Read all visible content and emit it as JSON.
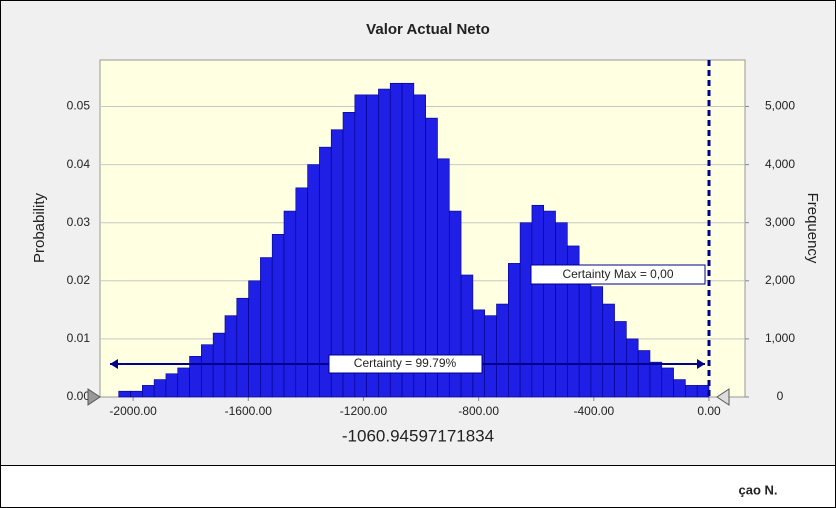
{
  "chart_data": {
    "type": "histogram",
    "title": "Valor Actual Neto",
    "y_label": "Probability",
    "y2_label": "Frequency",
    "x_label": "-1060.94597171834",
    "annotations": [
      "Certainty = 99.79%",
      "Certainty Max = 0,00"
    ],
    "footer": "çao N.",
    "color": "#1f1fe6",
    "edge_color": "#00008b",
    "grid": true,
    "bins": [
      -2050,
      -2009,
      -1968,
      -1927,
      -1886,
      -1845,
      -1804,
      -1763,
      -1722,
      -1681,
      -1640,
      -1599,
      -1558,
      -1517,
      -1476,
      -1435,
      -1394,
      -1353,
      -1312,
      -1271,
      -1230,
      -1189,
      -1148,
      -1107,
      -1066,
      -1025,
      -984,
      -943,
      -902,
      -861,
      -820,
      -779,
      -738,
      -697,
      -656,
      -615,
      -574,
      -533,
      -492,
      -451,
      -410,
      -369,
      -328,
      -287,
      -246,
      -205,
      -164,
      -123,
      -82,
      -41,
      0
    ],
    "values": [
      0.001,
      0.001,
      0.002,
      0.003,
      0.004,
      0.005,
      0.007,
      0.009,
      0.011,
      0.014,
      0.017,
      0.02,
      0.024,
      0.028,
      0.032,
      0.036,
      0.04,
      0.043,
      0.046,
      0.049,
      0.052,
      0.052,
      0.053,
      0.054,
      0.054,
      0.052,
      0.048,
      0.041,
      0.032,
      0.021,
      0.015,
      0.014,
      0.016,
      0.023,
      0.03,
      0.033,
      0.032,
      0.03,
      0.026,
      0.022,
      0.019,
      0.016,
      0.013,
      0.01,
      0.008,
      0.006,
      0.005,
      0.003,
      0.002,
      0.002
    ],
    "xlim": [
      -2115,
      125
    ],
    "xticks": [
      {
        "value": -2000,
        "label": "-2000.00"
      },
      {
        "value": -1600,
        "label": "-1600.00"
      },
      {
        "value": -1200,
        "label": "-1200.00"
      },
      {
        "value": -800,
        "label": "-800.00"
      },
      {
        "value": -400,
        "label": "-400.00"
      },
      {
        "value": 0,
        "label": "0.00"
      }
    ],
    "ylim": [
      0,
      0.058
    ],
    "yticks": [
      {
        "value": 0,
        "label": "0.00"
      },
      0.01,
      0.02,
      0.03,
      0.04,
      0.05
    ],
    "y2lim": [
      0,
      5800
    ],
    "y2ticks": [
      0,
      {
        "value": 1000,
        "label": "1,000"
      },
      {
        "value": 2000,
        "label": "2,000"
      },
      {
        "value": 3000,
        "label": "3,000"
      },
      {
        "value": 4000,
        "label": "4,000"
      },
      {
        "value": 5000,
        "label": "5,000"
      }
    ]
  }
}
